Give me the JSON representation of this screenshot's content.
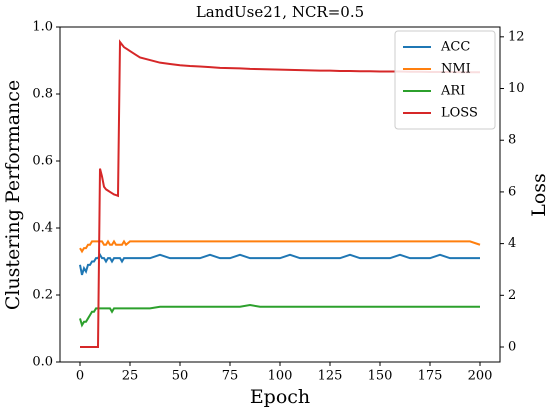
{
  "chart_data": {
    "type": "line",
    "title": "LandUse21, NCR=0.5",
    "x_label": "Epoch",
    "y_label": "Clustering Performance",
    "y2_label": "Loss",
    "x": [
      0,
      1,
      2,
      3,
      4,
      5,
      6,
      7,
      8,
      9,
      10,
      11,
      12,
      13,
      14,
      15,
      16,
      17,
      18,
      19,
      20,
      21,
      22,
      23,
      25,
      28,
      30,
      35,
      40,
      45,
      50,
      55,
      60,
      65,
      70,
      75,
      80,
      85,
      90,
      95,
      100,
      105,
      110,
      115,
      120,
      125,
      130,
      135,
      140,
      145,
      150,
      155,
      160,
      165,
      170,
      175,
      180,
      185,
      190,
      195,
      200
    ],
    "series": [
      {
        "name": "ACC",
        "color": "#1f77b4",
        "values": [
          0.29,
          0.26,
          0.28,
          0.27,
          0.29,
          0.29,
          0.3,
          0.3,
          0.31,
          0.31,
          0.32,
          0.31,
          0.31,
          0.3,
          0.31,
          0.31,
          0.3,
          0.31,
          0.31,
          0.31,
          0.31,
          0.3,
          0.31,
          0.31,
          0.31,
          0.31,
          0.31,
          0.31,
          0.32,
          0.31,
          0.31,
          0.31,
          0.31,
          0.32,
          0.31,
          0.31,
          0.32,
          0.31,
          0.31,
          0.31,
          0.31,
          0.32,
          0.31,
          0.31,
          0.31,
          0.31,
          0.31,
          0.32,
          0.31,
          0.31,
          0.31,
          0.31,
          0.32,
          0.31,
          0.31,
          0.31,
          0.32,
          0.31,
          0.31,
          0.31,
          0.31
        ]
      },
      {
        "name": "NMI",
        "color": "#ff7f0e",
        "values": [
          0.34,
          0.33,
          0.34,
          0.34,
          0.35,
          0.35,
          0.36,
          0.36,
          0.36,
          0.36,
          0.36,
          0.36,
          0.35,
          0.35,
          0.36,
          0.35,
          0.35,
          0.36,
          0.35,
          0.35,
          0.35,
          0.35,
          0.36,
          0.35,
          0.36,
          0.36,
          0.36,
          0.36,
          0.36,
          0.36,
          0.36,
          0.36,
          0.36,
          0.36,
          0.36,
          0.36,
          0.36,
          0.36,
          0.36,
          0.36,
          0.36,
          0.36,
          0.36,
          0.36,
          0.36,
          0.36,
          0.36,
          0.36,
          0.36,
          0.36,
          0.36,
          0.36,
          0.36,
          0.36,
          0.36,
          0.36,
          0.36,
          0.36,
          0.36,
          0.36,
          0.35
        ]
      },
      {
        "name": "ARI",
        "color": "#2ca02c",
        "values": [
          0.13,
          0.11,
          0.12,
          0.12,
          0.13,
          0.14,
          0.15,
          0.15,
          0.16,
          0.16,
          0.16,
          0.16,
          0.16,
          0.16,
          0.16,
          0.16,
          0.15,
          0.16,
          0.16,
          0.16,
          0.16,
          0.16,
          0.16,
          0.16,
          0.16,
          0.16,
          0.16,
          0.16,
          0.165,
          0.165,
          0.165,
          0.165,
          0.165,
          0.165,
          0.165,
          0.165,
          0.165,
          0.17,
          0.165,
          0.165,
          0.165,
          0.165,
          0.165,
          0.165,
          0.165,
          0.165,
          0.165,
          0.165,
          0.165,
          0.165,
          0.165,
          0.165,
          0.165,
          0.165,
          0.165,
          0.165,
          0.165,
          0.165,
          0.165,
          0.165,
          0.165
        ]
      },
      {
        "name": "LOSS",
        "color": "#d62728",
        "axis": "y2",
        "values": [
          0,
          0,
          0,
          0,
          0,
          0,
          0,
          0,
          0,
          0,
          6.9,
          6.6,
          6.2,
          6.1,
          6.05,
          6.0,
          5.95,
          5.9,
          5.88,
          5.85,
          11.8,
          11.7,
          11.6,
          11.55,
          11.45,
          11.3,
          11.2,
          11.1,
          11.0,
          10.95,
          10.9,
          10.87,
          10.85,
          10.83,
          10.8,
          10.79,
          10.78,
          10.76,
          10.75,
          10.74,
          10.73,
          10.72,
          10.71,
          10.7,
          10.69,
          10.69,
          10.68,
          10.68,
          10.67,
          10.67,
          10.66,
          10.66,
          10.66,
          10.65,
          10.65,
          10.64,
          10.64,
          10.64,
          10.63,
          10.63,
          10.63
        ]
      }
    ],
    "xlim": [
      -10,
      210
    ],
    "xticks": [
      0,
      25,
      50,
      75,
      100,
      125,
      150,
      175,
      200
    ],
    "ylim": [
      0,
      1
    ],
    "yticks": [
      {
        "value": 0,
        "label": "0.0"
      },
      0.2,
      0.4,
      0.6,
      0.8,
      {
        "value": 1,
        "label": "1.0"
      }
    ],
    "y2lim": [
      -0.58,
      12.38
    ],
    "y2ticks": [
      0,
      2,
      4,
      6,
      8,
      10,
      12
    ],
    "legend": "upper right"
  }
}
